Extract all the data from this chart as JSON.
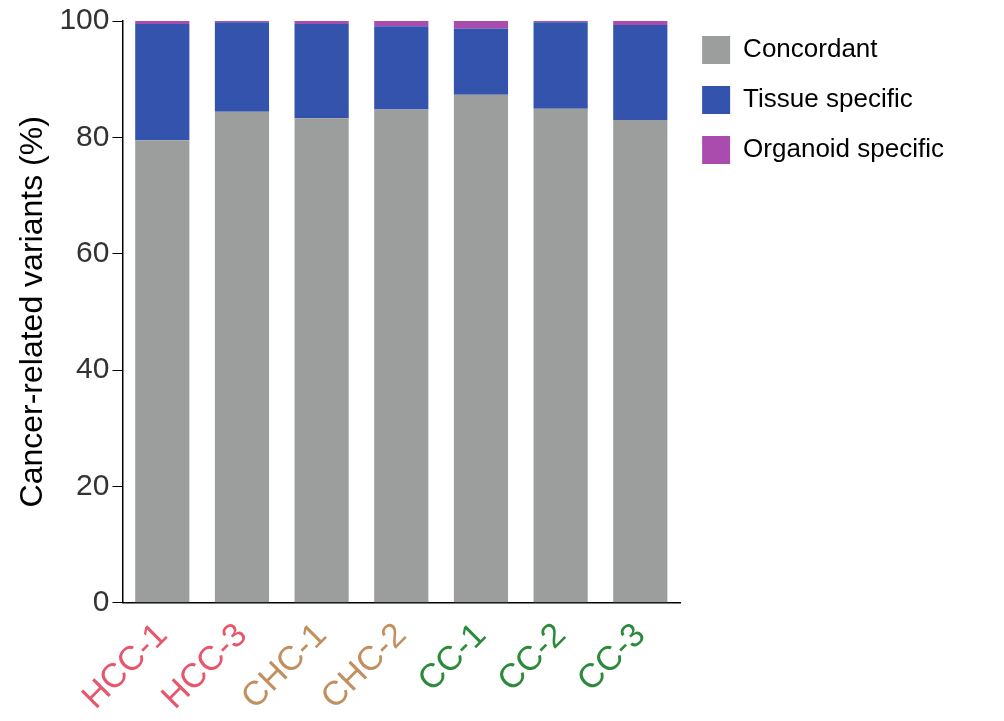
{
  "chart_data": {
    "type": "bar",
    "stacked": true,
    "ylabel": "Cancer-related variants (%)",
    "categories": [
      "HCC-1",
      "HCC-3",
      "CHC-1",
      "CHC-2",
      "CC-1",
      "CC-2",
      "CC-3"
    ],
    "series": [
      {
        "name": "Concordant",
        "color": "#9c9d9d",
        "values": [
          79.5,
          84.4,
          83.3,
          84.8,
          87.3,
          84.9,
          83.0
        ]
      },
      {
        "name": "Tissue specific",
        "color": "#3353ad",
        "values": [
          20.0,
          15.4,
          16.2,
          14.3,
          11.4,
          14.9,
          16.3
        ]
      },
      {
        "name": "Organoid specific",
        "color": "#a94cad",
        "values": [
          0.5,
          0.2,
          0.5,
          0.9,
          1.3,
          0.2,
          0.7
        ]
      }
    ],
    "ylim": [
      0,
      100
    ],
    "yticks": [
      0,
      20,
      40,
      60,
      80,
      100
    ],
    "legend": "right",
    "grid": false
  }
}
